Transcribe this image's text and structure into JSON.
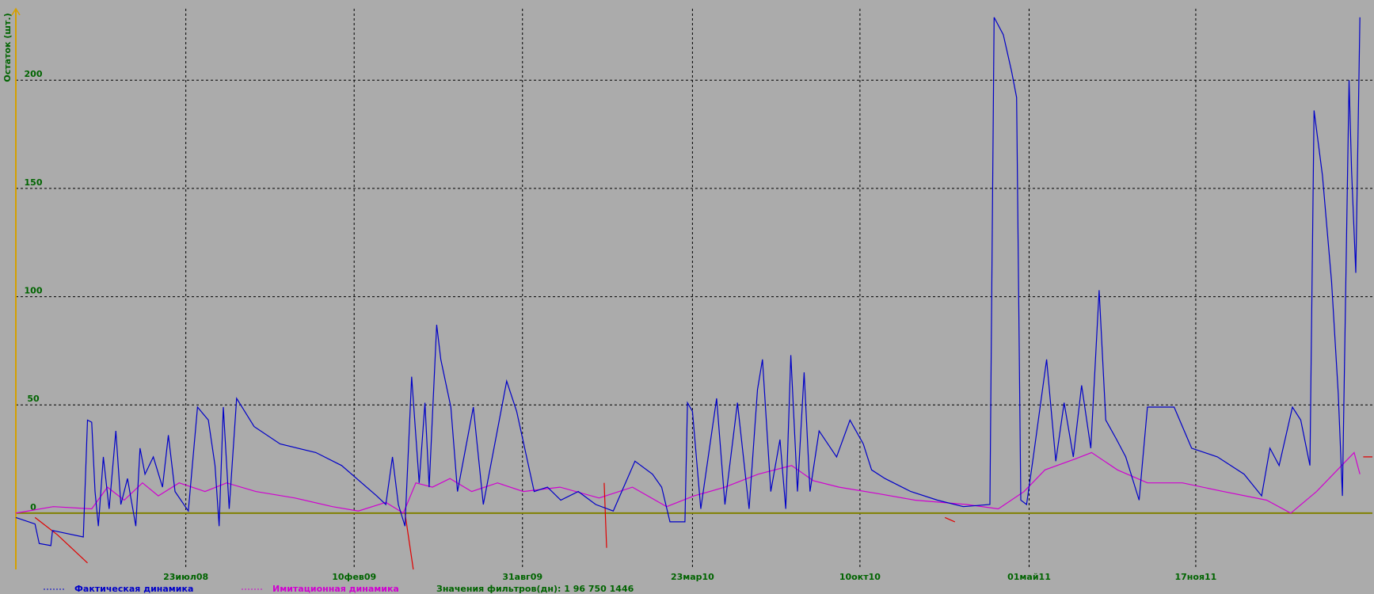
{
  "chart_data": {
    "type": "line",
    "ylabel": "Остаток (шт.)",
    "xlim": [
      "2008-01-01",
      "2012-06-16"
    ],
    "xticks": [
      {
        "value": "2008-07-23",
        "label": "23июл08"
      },
      {
        "value": "2009-02-10",
        "label": "10фев09"
      },
      {
        "value": "2009-08-31",
        "label": "31авг09"
      },
      {
        "value": "2010-03-23",
        "label": "23мар10"
      },
      {
        "value": "2010-10-10",
        "label": "10окт10"
      },
      {
        "value": "2011-05-01",
        "label": "01май11"
      },
      {
        "value": "2011-11-17",
        "label": "17ноя11"
      }
    ],
    "ylim": [
      -26,
      233
    ],
    "yticks": [
      0,
      50,
      100,
      150,
      200
    ],
    "grid": true,
    "annotation": "Значения фильтров(дн): 1 96 750 1446",
    "series": [
      {
        "name": "Фактическая динамика",
        "color": "#0000c8",
        "x": [
          "2008-01-01",
          "2008-01-24",
          "2008-01-29",
          "2008-02-12",
          "2008-02-14",
          "2008-03-22",
          "2008-03-27",
          "2008-04-01",
          "2008-04-05",
          "2008-04-09",
          "2008-04-15",
          "2008-04-22",
          "2008-04-30",
          "2008-05-06",
          "2008-05-14",
          "2008-05-24",
          "2008-05-29",
          "2008-06-04",
          "2008-06-14",
          "2008-06-25",
          "2008-07-02",
          "2008-07-10",
          "2008-07-26",
          "2008-08-06",
          "2008-08-19",
          "2008-08-27",
          "2008-09-01",
          "2008-09-06",
          "2008-09-13",
          "2008-09-22",
          "2008-10-13",
          "2008-11-13",
          "2008-12-26",
          "2009-01-26",
          "2009-03-09",
          "2009-03-20",
          "2009-03-28",
          "2009-04-04",
          "2009-04-12",
          "2009-04-20",
          "2009-04-29",
          "2009-05-06",
          "2009-05-11",
          "2009-05-20",
          "2009-05-25",
          "2009-06-06",
          "2009-06-14",
          "2009-07-03",
          "2009-07-15",
          "2009-08-12",
          "2009-08-24",
          "2009-09-14",
          "2009-09-30",
          "2009-10-16",
          "2009-11-06",
          "2009-11-27",
          "2009-12-18",
          "2010-01-13",
          "2010-02-03",
          "2010-02-14",
          "2010-02-24",
          "2010-03-14",
          "2010-03-17",
          "2010-03-23",
          "2010-04-02",
          "2010-04-21",
          "2010-05-01",
          "2010-05-16",
          "2010-05-30",
          "2010-06-09",
          "2010-06-15",
          "2010-06-25",
          "2010-07-06",
          "2010-07-13",
          "2010-07-19",
          "2010-07-27",
          "2010-08-04",
          "2010-08-11",
          "2010-08-22",
          "2010-09-12",
          "2010-09-28",
          "2010-10-14",
          "2010-10-24",
          "2010-11-09",
          "2010-12-10",
          "2011-01-11",
          "2011-02-11",
          "2011-03-15",
          "2011-03-20",
          "2011-03-31",
          "2011-04-10",
          "2011-04-16",
          "2011-04-21",
          "2011-04-28",
          "2011-05-06",
          "2011-05-22",
          "2011-06-02",
          "2011-06-12",
          "2011-06-23",
          "2011-07-03",
          "2011-07-14",
          "2011-07-24",
          "2011-08-01",
          "2011-08-14",
          "2011-08-25",
          "2011-09-10",
          "2011-09-20",
          "2011-10-22",
          "2011-11-12",
          "2011-12-13",
          "2012-01-14",
          "2012-02-04",
          "2012-02-14",
          "2012-02-25",
          "2012-03-12",
          "2012-03-22",
          "2012-04-02",
          "2012-04-07",
          "2012-04-17",
          "2012-04-28",
          "2012-05-06",
          "2012-05-11",
          "2012-05-19",
          "2012-05-22",
          "2012-05-27",
          "2012-06-01"
        ],
        "values": [
          -2,
          -5,
          -14,
          -15,
          -8,
          -11,
          43,
          42,
          10,
          -6,
          26,
          2,
          38,
          4,
          16,
          -6,
          30,
          18,
          26,
          12,
          36,
          10,
          1,
          49,
          43,
          22,
          -6,
          49,
          2,
          53,
          40,
          32,
          28,
          22,
          8,
          4,
          26,
          4,
          -6,
          63,
          14,
          51,
          12,
          87,
          71,
          49,
          10,
          49,
          4,
          61,
          47,
          10,
          12,
          6,
          10,
          4,
          1,
          24,
          18,
          12,
          -4,
          -4,
          51,
          47,
          2,
          53,
          4,
          51,
          2,
          57,
          71,
          10,
          34,
          2,
          73,
          10,
          65,
          10,
          38,
          26,
          43,
          32,
          20,
          16,
          10,
          6,
          3,
          4,
          229,
          221,
          204,
          192,
          6,
          4,
          26,
          71,
          24,
          51,
          26,
          59,
          30,
          103,
          43,
          34,
          26,
          6,
          49,
          49,
          30,
          26,
          18,
          8,
          30,
          22,
          49,
          43,
          22,
          186,
          156,
          107,
          55,
          8,
          200,
          158,
          111,
          229
        ]
      },
      {
        "name": "Имитационная динамика",
        "color": "#d000d0",
        "x": [
          "2008-01-01",
          "2008-02-15",
          "2008-04-01",
          "2008-04-20",
          "2008-05-10",
          "2008-06-01",
          "2008-06-20",
          "2008-07-15",
          "2008-08-15",
          "2008-09-10",
          "2008-10-15",
          "2008-12-01",
          "2009-01-15",
          "2009-02-15",
          "2009-03-20",
          "2009-04-10",
          "2009-04-25",
          "2009-05-15",
          "2009-06-05",
          "2009-07-01",
          "2009-08-01",
          "2009-09-01",
          "2009-10-15",
          "2009-12-01",
          "2010-01-10",
          "2010-02-20",
          "2010-03-25",
          "2010-05-01",
          "2010-06-10",
          "2010-07-20",
          "2010-08-15",
          "2010-09-15",
          "2010-11-01",
          "2010-12-15",
          "2011-02-15",
          "2011-03-25",
          "2011-04-25",
          "2011-05-20",
          "2011-06-25",
          "2011-07-15",
          "2011-08-15",
          "2011-09-20",
          "2011-11-01",
          "2011-12-20",
          "2012-02-10",
          "2012-03-10",
          "2012-04-10",
          "2012-05-10",
          "2012-05-25",
          "2012-06-01"
        ],
        "values": [
          0,
          3,
          2,
          12,
          6,
          14,
          8,
          14,
          10,
          14,
          10,
          7,
          3,
          1,
          5,
          0,
          14,
          12,
          16,
          10,
          14,
          10,
          12,
          7,
          12,
          3,
          8,
          12,
          18,
          22,
          15,
          12,
          9,
          6,
          4,
          2,
          10,
          20,
          25,
          28,
          20,
          14,
          14,
          10,
          6,
          0,
          10,
          22,
          28,
          18
        ]
      },
      {
        "color": "#e00000",
        "x": [
          "2008-01-24",
          "2008-02-20",
          "2008-03-27",
          null,
          "2009-04-12",
          "2009-04-22",
          null,
          "2009-12-07",
          "2009-12-10",
          null,
          "2011-01-20",
          "2011-02-01",
          null,
          "2012-06-05",
          "2012-06-16"
        ],
        "values": [
          -2,
          -10,
          -23,
          null,
          0,
          -26,
          null,
          14,
          -16,
          null,
          -2,
          -4,
          null,
          26,
          26
        ]
      }
    ]
  }
}
